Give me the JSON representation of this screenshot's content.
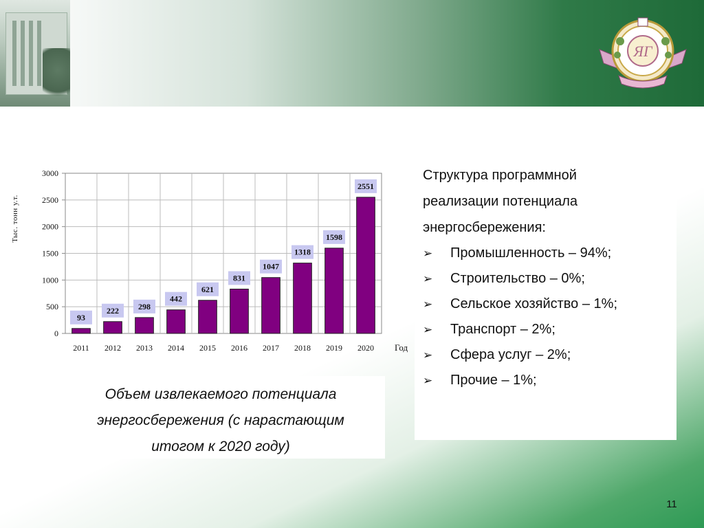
{
  "slide": {
    "page_number": "11",
    "colors": {
      "header_green": "#1e6a38",
      "bar_purple": "#800080",
      "label_bg": "#c8c8f0"
    }
  },
  "logo": {
    "name": "university-crest"
  },
  "chart_data": {
    "type": "bar",
    "categories": [
      "2011",
      "2012",
      "2013",
      "2014",
      "2015",
      "2016",
      "2017",
      "2018",
      "2019",
      "2020"
    ],
    "values": [
      93,
      222,
      298,
      442,
      621,
      831,
      1047,
      1318,
      1598,
      2551
    ],
    "data_labels": [
      "93",
      "222",
      "298",
      "442",
      "621",
      "831",
      "1047",
      "1318",
      "1598",
      "2551"
    ],
    "ylabel": "Тыс. тонн у.т.",
    "xlabel": "Год",
    "ylim": [
      0,
      3000
    ],
    "yticks": [
      "0",
      "500",
      "1000",
      "1500",
      "2000",
      "2500",
      "3000"
    ],
    "grid": true,
    "bar_color": "#800080"
  },
  "caption": {
    "lines": [
      "Объем извлекаемого потенциала",
      "энергосбережения (с нарастающим",
      "итогом к 2020 году)"
    ]
  },
  "info": {
    "heading_lines": [
      "Структура программной",
      "реализации потенциала",
      "энергосбережения:"
    ],
    "bullet_glyph": "➢",
    "items": [
      "Промышленность – 94%;",
      "Строительство – 0%;",
      "Сельское хозяйство – 1%;",
      "Транспорт – 2%;",
      "Сфера услуг – 2%;",
      "Прочие – 1%;"
    ]
  }
}
